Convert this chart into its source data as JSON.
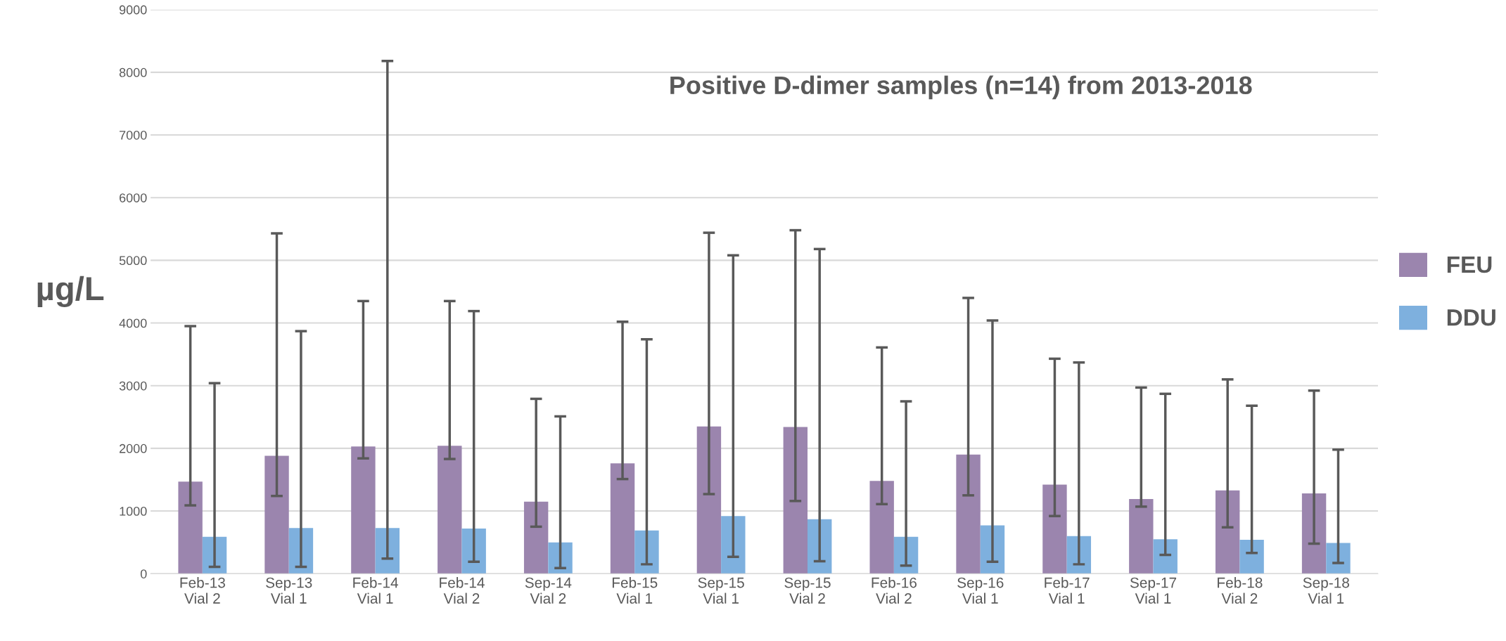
{
  "chart_data": {
    "type": "bar",
    "title": "Positive D-dimer samples (n=14) from 2013-2018",
    "ylabel": "µg/L",
    "categories": [
      "Feb-13\nVial 2",
      "Sep-13\nVial 1",
      "Feb-14\nVial 1",
      "Feb-14\nVial 2",
      "Sep-14\nVial 2",
      "Feb-15\nVial 1",
      "Sep-15\nVial 1",
      "Sep-15\nVial 2",
      "Feb-16\nVial 2",
      "Sep-16\nVial 1",
      "Feb-17\nVial 1",
      "Sep-17\nVial 1",
      "Feb-18\nVial 2",
      "Sep-18\nVial 1"
    ],
    "series": [
      {
        "name": "FEU",
        "color": "#9b85ae",
        "values": [
          1470,
          1880,
          2030,
          2040,
          1150,
          1760,
          2350,
          2340,
          1480,
          1900,
          1420,
          1190,
          1330,
          1280
        ],
        "errors": [
          [
            1090,
            3950
          ],
          [
            1240,
            5430
          ],
          [
            1840,
            4350
          ],
          [
            1830,
            4350
          ],
          [
            750,
            2790
          ],
          [
            1510,
            4020
          ],
          [
            1270,
            5440
          ],
          [
            1160,
            5480
          ],
          [
            1110,
            3610
          ],
          [
            1250,
            4400
          ],
          [
            920,
            3430
          ],
          [
            1070,
            2970
          ],
          [
            740,
            3100
          ],
          [
            480,
            2920
          ]
        ]
      },
      {
        "name": "DDU",
        "color": "#7eb0de",
        "values": [
          590,
          730,
          730,
          720,
          500,
          690,
          920,
          870,
          590,
          770,
          600,
          550,
          540,
          490
        ],
        "errors": [
          [
            110,
            3040
          ],
          [
            110,
            3870
          ],
          [
            240,
            8180
          ],
          [
            190,
            4190
          ],
          [
            90,
            2510
          ],
          [
            150,
            3740
          ],
          [
            270,
            5080
          ],
          [
            200,
            5180
          ],
          [
            130,
            2750
          ],
          [
            190,
            4040
          ],
          [
            150,
            3370
          ],
          [
            300,
            2870
          ],
          [
            330,
            2680
          ],
          [
            170,
            1980
          ]
        ]
      }
    ],
    "ylim": [
      0,
      9000
    ],
    "yticks": [
      0,
      1000,
      2000,
      3000,
      4000,
      5000,
      6000,
      7000,
      8000,
      9000
    ],
    "grid": "y",
    "legend": "right"
  }
}
